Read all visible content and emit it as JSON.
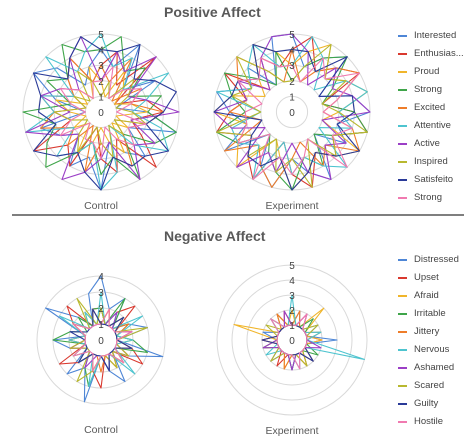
{
  "sections": {
    "positive": {
      "title": "Positive Affect"
    },
    "negative": {
      "title": "Negative Affect"
    }
  },
  "colors": [
    "#4e86d6",
    "#d9392f",
    "#f0b52b",
    "#3fa54a",
    "#ee7d2a",
    "#4ec4cf",
    "#9b3fc6",
    "#b8b830",
    "#2a3a98",
    "#f07ab0"
  ],
  "legends": {
    "positive": [
      "Interested",
      "Enthusias...",
      "Proud",
      "Strong",
      "Excited",
      "Attentive",
      "Active",
      "Inspired",
      "Satisfeito",
      "Strong"
    ],
    "negative": [
      "Distressed",
      "Upset",
      "Afraid",
      "Irritable",
      "Jittery",
      "Nervous",
      "Ashamed",
      "Scared",
      "Guilty",
      "Hostile"
    ]
  },
  "chart_data": [
    {
      "type": "radar",
      "section": "Positive Affect",
      "xlabel": "Control",
      "rlim": [
        0,
        5
      ],
      "ticks": [
        "0",
        "1",
        "2",
        "3",
        "4",
        "5"
      ],
      "tick_values": [
        0,
        1,
        2,
        3,
        4,
        5
      ],
      "series": [
        {
          "name": "Interested",
          "values": [
            4,
            3,
            5,
            2,
            4,
            1,
            3,
            5,
            2,
            4,
            3,
            2,
            5,
            3,
            4,
            2,
            3,
            4,
            1,
            3,
            5,
            4,
            2,
            3
          ]
        },
        {
          "name": "Enthusias...",
          "values": [
            3,
            4,
            2,
            5,
            1,
            3,
            4,
            2,
            3,
            5,
            2,
            4,
            3,
            1,
            4,
            3,
            5,
            2,
            3,
            4,
            2,
            3,
            4,
            2
          ]
        },
        {
          "name": "Proud",
          "values": [
            2,
            1,
            3,
            2,
            1,
            2,
            3,
            1,
            2,
            1,
            3,
            2,
            1,
            2,
            3,
            1,
            2,
            1,
            2,
            3,
            1,
            2,
            1,
            3
          ]
        },
        {
          "name": "Strong",
          "values": [
            4,
            5,
            3,
            4,
            2,
            4,
            3,
            5,
            4,
            2,
            5,
            3,
            4,
            2,
            3,
            5,
            4,
            3,
            5,
            2,
            4,
            3,
            5,
            4
          ]
        },
        {
          "name": "Excited",
          "values": [
            3,
            2,
            4,
            1,
            3,
            2,
            4,
            3,
            1,
            2,
            4,
            3,
            2,
            4,
            1,
            3,
            2,
            4,
            3,
            1,
            2,
            3,
            4,
            2
          ]
        },
        {
          "name": "Attentive",
          "values": [
            5,
            3,
            4,
            2,
            5,
            3,
            2,
            4,
            5,
            3,
            1,
            4,
            5,
            2,
            3,
            4,
            2,
            5,
            3,
            4,
            2,
            5,
            3,
            4
          ]
        },
        {
          "name": "Active",
          "values": [
            2,
            4,
            3,
            5,
            2,
            3,
            5,
            2,
            4,
            3,
            5,
            2,
            3,
            4,
            5,
            2,
            3,
            5,
            2,
            4,
            3,
            2,
            4,
            5
          ]
        },
        {
          "name": "Inspired",
          "values": [
            1,
            2,
            1,
            3,
            2,
            1,
            2,
            3,
            1,
            2,
            1,
            3,
            2,
            1,
            3,
            2,
            1,
            2,
            3,
            1,
            2,
            1,
            3,
            2
          ]
        },
        {
          "name": "Satisfeito",
          "values": [
            4,
            4,
            5,
            3,
            4,
            5,
            4,
            3,
            5,
            4,
            4,
            3,
            5,
            4,
            3,
            4,
            5,
            3,
            4,
            4,
            5,
            3,
            4,
            5
          ]
        },
        {
          "name": "Strong",
          "values": [
            2,
            3,
            1,
            2,
            3,
            2,
            1,
            3,
            2,
            3,
            2,
            1,
            3,
            2,
            2,
            1,
            3,
            2,
            1,
            2,
            3,
            2,
            1,
            2
          ]
        }
      ]
    },
    {
      "type": "radar",
      "section": "Positive Affect",
      "xlabel": "Experiment",
      "rlim": [
        0,
        5
      ],
      "ticks": [
        "0",
        "1",
        "2",
        "3",
        "4",
        "5"
      ],
      "tick_values": [
        0,
        1,
        2,
        3,
        4,
        5
      ],
      "series": [
        {
          "name": "Interested",
          "values": [
            5,
            3,
            4,
            5,
            2,
            4,
            5,
            3,
            4,
            2,
            5,
            4,
            3,
            5,
            4,
            2,
            5,
            3,
            4,
            5,
            3,
            4,
            2,
            5
          ]
        },
        {
          "name": "Enthusias...",
          "values": [
            4,
            5,
            3,
            4,
            5,
            2,
            4,
            5,
            3,
            4,
            3,
            5,
            4,
            2,
            5,
            4,
            3,
            5,
            4,
            3,
            5,
            2,
            4,
            3
          ]
        },
        {
          "name": "Proud",
          "values": [
            3,
            4,
            5,
            3,
            4,
            5,
            3,
            2,
            5,
            4,
            3,
            4,
            5,
            3,
            2,
            5,
            4,
            3,
            5,
            4,
            2,
            3,
            5,
            4
          ]
        },
        {
          "name": "Strong",
          "values": [
            2,
            3,
            4,
            5,
            3,
            2,
            4,
            5,
            3,
            2,
            4,
            3,
            5,
            4,
            3,
            2,
            4,
            5,
            3,
            4,
            5,
            3,
            2,
            4
          ]
        },
        {
          "name": "Excited",
          "values": [
            4,
            2,
            3,
            4,
            5,
            3,
            2,
            4,
            5,
            3,
            4,
            2,
            3,
            5,
            4,
            3,
            5,
            2,
            4,
            3,
            4,
            5,
            3,
            2
          ]
        },
        {
          "name": "Attentive",
          "values": [
            3,
            5,
            4,
            2,
            4,
            5,
            3,
            4,
            2,
            5,
            4,
            3,
            4,
            2,
            5,
            3,
            4,
            4,
            2,
            5,
            3,
            4,
            5,
            3
          ]
        },
        {
          "name": "Active",
          "values": [
            5,
            4,
            2,
            4,
            3,
            4,
            5,
            2,
            4,
            3,
            5,
            4,
            2,
            4,
            3,
            5,
            2,
            4,
            5,
            3,
            4,
            2,
            4,
            5
          ]
        },
        {
          "name": "Inspired",
          "values": [
            2,
            3,
            5,
            3,
            4,
            2,
            3,
            5,
            3,
            4,
            2,
            5,
            3,
            4,
            2,
            4,
            3,
            5,
            2,
            4,
            3,
            5,
            3,
            2
          ]
        },
        {
          "name": "Satisfeito",
          "values": [
            4,
            4,
            3,
            5,
            2,
            4,
            4,
            3,
            5,
            4,
            3,
            4,
            5,
            3,
            4,
            4,
            3,
            2,
            5,
            4,
            4,
            3,
            5,
            4
          ]
        },
        {
          "name": "Strong",
          "values": [
            3,
            2,
            4,
            3,
            5,
            3,
            2,
            4,
            3,
            5,
            2,
            3,
            4,
            3,
            5,
            2,
            4,
            3,
            3,
            2,
            4,
            3,
            4,
            3
          ]
        }
      ]
    },
    {
      "type": "radar",
      "section": "Negative Affect",
      "xlabel": "Control",
      "rlim": [
        0,
        4
      ],
      "ticks": [
        "0",
        "1",
        "2",
        "3",
        "4"
      ],
      "tick_values": [
        0,
        1,
        2,
        3,
        4
      ],
      "series": [
        {
          "name": "Distressed",
          "values": [
            4,
            2,
            3,
            1,
            2,
            3,
            1,
            4,
            2,
            1,
            3,
            2,
            1,
            4,
            2,
            3,
            1,
            2,
            3,
            1,
            4,
            2,
            1,
            3
          ]
        },
        {
          "name": "Upset",
          "values": [
            2,
            1,
            2,
            3,
            1,
            2,
            1,
            2,
            3,
            1,
            2,
            1,
            3,
            2,
            1,
            2,
            3,
            1,
            2,
            1,
            2,
            3,
            1,
            2
          ]
        },
        {
          "name": "Afraid",
          "values": [
            1,
            2,
            1,
            2,
            1,
            1,
            2,
            1,
            2,
            1,
            2,
            1,
            1,
            2,
            1,
            2,
            1,
            1,
            2,
            1,
            2,
            1,
            2,
            1
          ]
        },
        {
          "name": "Irritable",
          "values": [
            2,
            1,
            3,
            1,
            2,
            1,
            2,
            3,
            1,
            2,
            1,
            2,
            1,
            3,
            2,
            1,
            2,
            1,
            3,
            2,
            1,
            2,
            1,
            2
          ]
        },
        {
          "name": "Jittery",
          "values": [
            1,
            2,
            1,
            1,
            2,
            1,
            1,
            2,
            1,
            2,
            1,
            1,
            2,
            1,
            1,
            2,
            1,
            2,
            1,
            1,
            2,
            1,
            1,
            2
          ]
        },
        {
          "name": "Nervous",
          "values": [
            3,
            1,
            2,
            1,
            3,
            1,
            2,
            1,
            1,
            3,
            1,
            2,
            1,
            3,
            1,
            2,
            1,
            1,
            2,
            1,
            3,
            1,
            2,
            1
          ]
        },
        {
          "name": "Ashamed",
          "values": [
            1,
            1,
            2,
            1,
            1,
            2,
            1,
            1,
            2,
            1,
            1,
            2,
            1,
            1,
            2,
            1,
            1,
            2,
            1,
            1,
            2,
            1,
            1,
            1
          ]
        },
        {
          "name": "Scared",
          "values": [
            2,
            1,
            1,
            2,
            1,
            3,
            1,
            1,
            2,
            1,
            2,
            1,
            1,
            2,
            3,
            1,
            1,
            2,
            1,
            1,
            2,
            1,
            3,
            1
          ]
        },
        {
          "name": "Guilty",
          "values": [
            1,
            1,
            1,
            2,
            1,
            1,
            1,
            2,
            1,
            1,
            1,
            2,
            1,
            1,
            1,
            2,
            1,
            1,
            1,
            2,
            1,
            1,
            1,
            2
          ]
        },
        {
          "name": "Hostile",
          "values": [
            1,
            2,
            1,
            1,
            1,
            2,
            1,
            1,
            1,
            2,
            1,
            1,
            1,
            2,
            1,
            1,
            2,
            1,
            1,
            1,
            2,
            1,
            1,
            1
          ]
        }
      ]
    },
    {
      "type": "radar",
      "section": "Negative Affect",
      "xlabel": "Experiment",
      "rlim": [
        0,
        5
      ],
      "ticks": [
        "0",
        "1",
        "2",
        "3",
        "4",
        "5"
      ],
      "tick_values": [
        0,
        1,
        2,
        3,
        4,
        5
      ],
      "series": [
        {
          "name": "Distressed",
          "values": [
            1,
            2,
            1,
            1,
            2,
            1,
            3,
            1,
            1,
            2,
            1,
            1,
            2,
            1,
            1,
            2,
            1,
            1,
            1,
            2,
            1,
            1,
            2,
            1
          ]
        },
        {
          "name": "Upset",
          "values": [
            1,
            1,
            2,
            1,
            1,
            1,
            2,
            1,
            1,
            1,
            2,
            1,
            1,
            1,
            2,
            1,
            1,
            1,
            2,
            1,
            1,
            1,
            1,
            2
          ]
        },
        {
          "name": "Afraid",
          "values": [
            2,
            1,
            1,
            3,
            1,
            1,
            2,
            1,
            1,
            1,
            2,
            1,
            1,
            2,
            1,
            1,
            1,
            2,
            1,
            4,
            1,
            1,
            2,
            1
          ]
        },
        {
          "name": "Irritable",
          "values": [
            1,
            1,
            1,
            2,
            1,
            1,
            1,
            1,
            2,
            1,
            1,
            1,
            2,
            1,
            1,
            1,
            1,
            2,
            1,
            1,
            1,
            2,
            1,
            1
          ]
        },
        {
          "name": "Jittery",
          "values": [
            1,
            2,
            1,
            1,
            1,
            2,
            1,
            1,
            1,
            2,
            1,
            1,
            1,
            2,
            1,
            1,
            1,
            1,
            2,
            1,
            1,
            1,
            2,
            1
          ]
        },
        {
          "name": "Nervous",
          "values": [
            3,
            1,
            1,
            1,
            1,
            2,
            1,
            5,
            1,
            1,
            1,
            2,
            1,
            1,
            1,
            1,
            2,
            1,
            1,
            1,
            1,
            2,
            1,
            1
          ]
        },
        {
          "name": "Ashamed",
          "values": [
            1,
            1,
            2,
            1,
            1,
            1,
            1,
            2,
            1,
            1,
            1,
            1,
            2,
            1,
            1,
            1,
            1,
            2,
            1,
            1,
            1,
            1,
            1,
            2
          ]
        },
        {
          "name": "Scared",
          "values": [
            1,
            1,
            1,
            1,
            2,
            1,
            1,
            1,
            1,
            1,
            2,
            1,
            1,
            1,
            1,
            2,
            1,
            1,
            1,
            1,
            2,
            1,
            1,
            1
          ]
        },
        {
          "name": "Guilty",
          "values": [
            1,
            1,
            1,
            1,
            1,
            1,
            1,
            1,
            1,
            2,
            1,
            1,
            1,
            1,
            1,
            1,
            1,
            1,
            2,
            1,
            1,
            1,
            1,
            1
          ]
        },
        {
          "name": "Hostile",
          "values": [
            1,
            1,
            2,
            1,
            1,
            1,
            1,
            1,
            1,
            1,
            1,
            2,
            1,
            1,
            1,
            1,
            1,
            1,
            1,
            1,
            1,
            2,
            1,
            1
          ]
        }
      ]
    }
  ]
}
